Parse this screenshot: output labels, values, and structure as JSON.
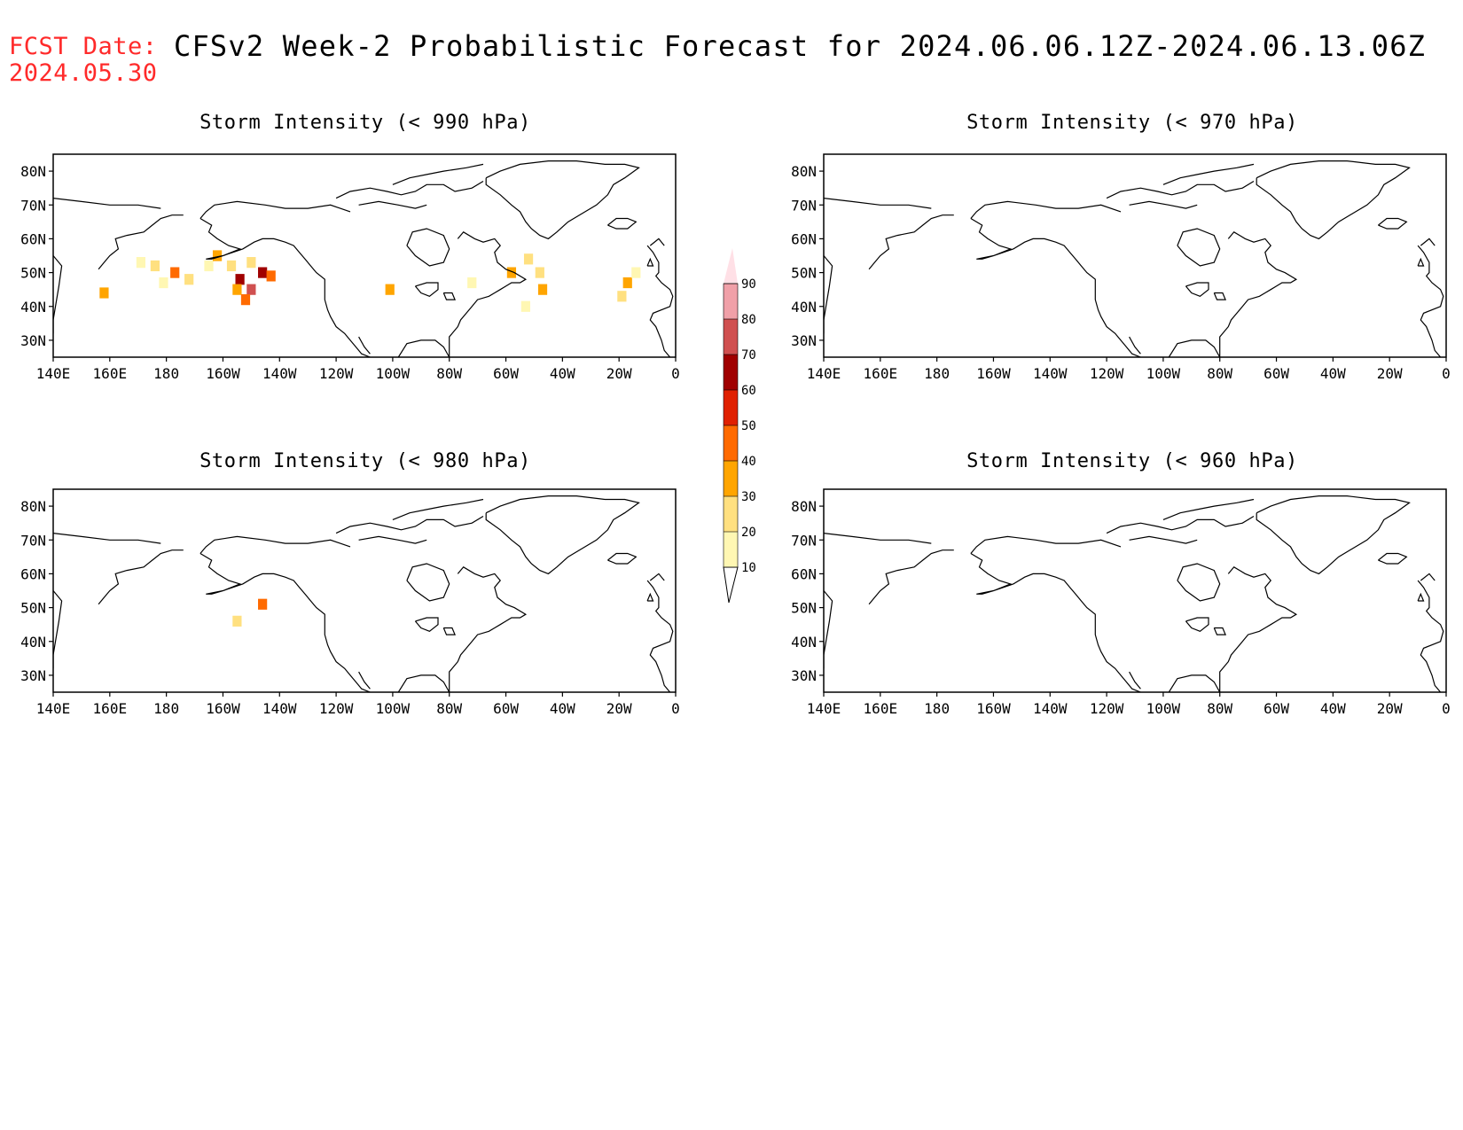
{
  "header": {
    "fcst_label": "FCST Date:",
    "fcst_date": "2024.05.30",
    "title": "CFSv2 Week-2 Probabilistic Forecast for 2024.06.06.12Z-2024.06.13.06Z"
  },
  "panels": [
    {
      "id": "p990",
      "title": "Storm Intensity (< 990 hPa)"
    },
    {
      "id": "p980",
      "title": "Storm Intensity (< 980 hPa)"
    },
    {
      "id": "p970",
      "title": "Storm Intensity (< 970 hPa)"
    },
    {
      "id": "p960",
      "title": "Storm Intensity (< 960 hPa)"
    }
  ],
  "axes": {
    "lon_labels": [
      "140E",
      "160E",
      "180",
      "160W",
      "140W",
      "120W",
      "100W",
      "80W",
      "60W",
      "40W",
      "20W",
      "0"
    ],
    "lon_values": [
      140,
      160,
      180,
      200,
      220,
      240,
      260,
      280,
      300,
      320,
      340,
      360
    ],
    "lat_labels": [
      "80N",
      "70N",
      "60N",
      "50N",
      "40N",
      "30N"
    ],
    "lat_values": [
      80,
      70,
      60,
      50,
      40,
      30
    ],
    "lon_range": [
      140,
      360
    ],
    "lat_range": [
      25,
      85
    ]
  },
  "colorbar": {
    "levels": [
      10,
      20,
      30,
      40,
      50,
      60,
      70,
      80,
      90
    ],
    "colors": [
      "#fff7b3",
      "#ffe080",
      "#ffa500",
      "#ff6a00",
      "#e02000",
      "#a00000",
      "#d05050",
      "#f0a0a8",
      "#ffe0e6"
    ]
  },
  "probability_fields": {
    "p990": [
      {
        "lon": 158,
        "lat": 44,
        "p": 30
      },
      {
        "lon": 171,
        "lat": 53,
        "p": 15
      },
      {
        "lon": 176,
        "lat": 52,
        "p": 20
      },
      {
        "lon": 183,
        "lat": 50,
        "p": 40
      },
      {
        "lon": 179,
        "lat": 47,
        "p": 15
      },
      {
        "lon": 188,
        "lat": 48,
        "p": 25
      },
      {
        "lon": 195,
        "lat": 52,
        "p": 15
      },
      {
        "lon": 198,
        "lat": 55,
        "p": 30
      },
      {
        "lon": 203,
        "lat": 52,
        "p": 20
      },
      {
        "lon": 206,
        "lat": 48,
        "p": 60
      },
      {
        "lon": 210,
        "lat": 45,
        "p": 70
      },
      {
        "lon": 214,
        "lat": 50,
        "p": 65
      },
      {
        "lon": 217,
        "lat": 49,
        "p": 45
      },
      {
        "lon": 210,
        "lat": 53,
        "p": 25
      },
      {
        "lon": 205,
        "lat": 45,
        "p": 30
      },
      {
        "lon": 208,
        "lat": 42,
        "p": 40
      },
      {
        "lon": 259,
        "lat": 45,
        "p": 35
      },
      {
        "lon": 288,
        "lat": 47,
        "p": 15
      },
      {
        "lon": 302,
        "lat": 50,
        "p": 35
      },
      {
        "lon": 308,
        "lat": 54,
        "p": 25
      },
      {
        "lon": 312,
        "lat": 50,
        "p": 20
      },
      {
        "lon": 313,
        "lat": 45,
        "p": 35
      },
      {
        "lon": 307,
        "lat": 40,
        "p": 15
      },
      {
        "lon": 343,
        "lat": 47,
        "p": 35
      },
      {
        "lon": 341,
        "lat": 43,
        "p": 20
      },
      {
        "lon": 346,
        "lat": 50,
        "p": 15
      }
    ],
    "p980": [
      {
        "lon": 205,
        "lat": 46,
        "p": 25
      },
      {
        "lon": 214,
        "lat": 51,
        "p": 40
      }
    ],
    "p970": [],
    "p960": []
  }
}
